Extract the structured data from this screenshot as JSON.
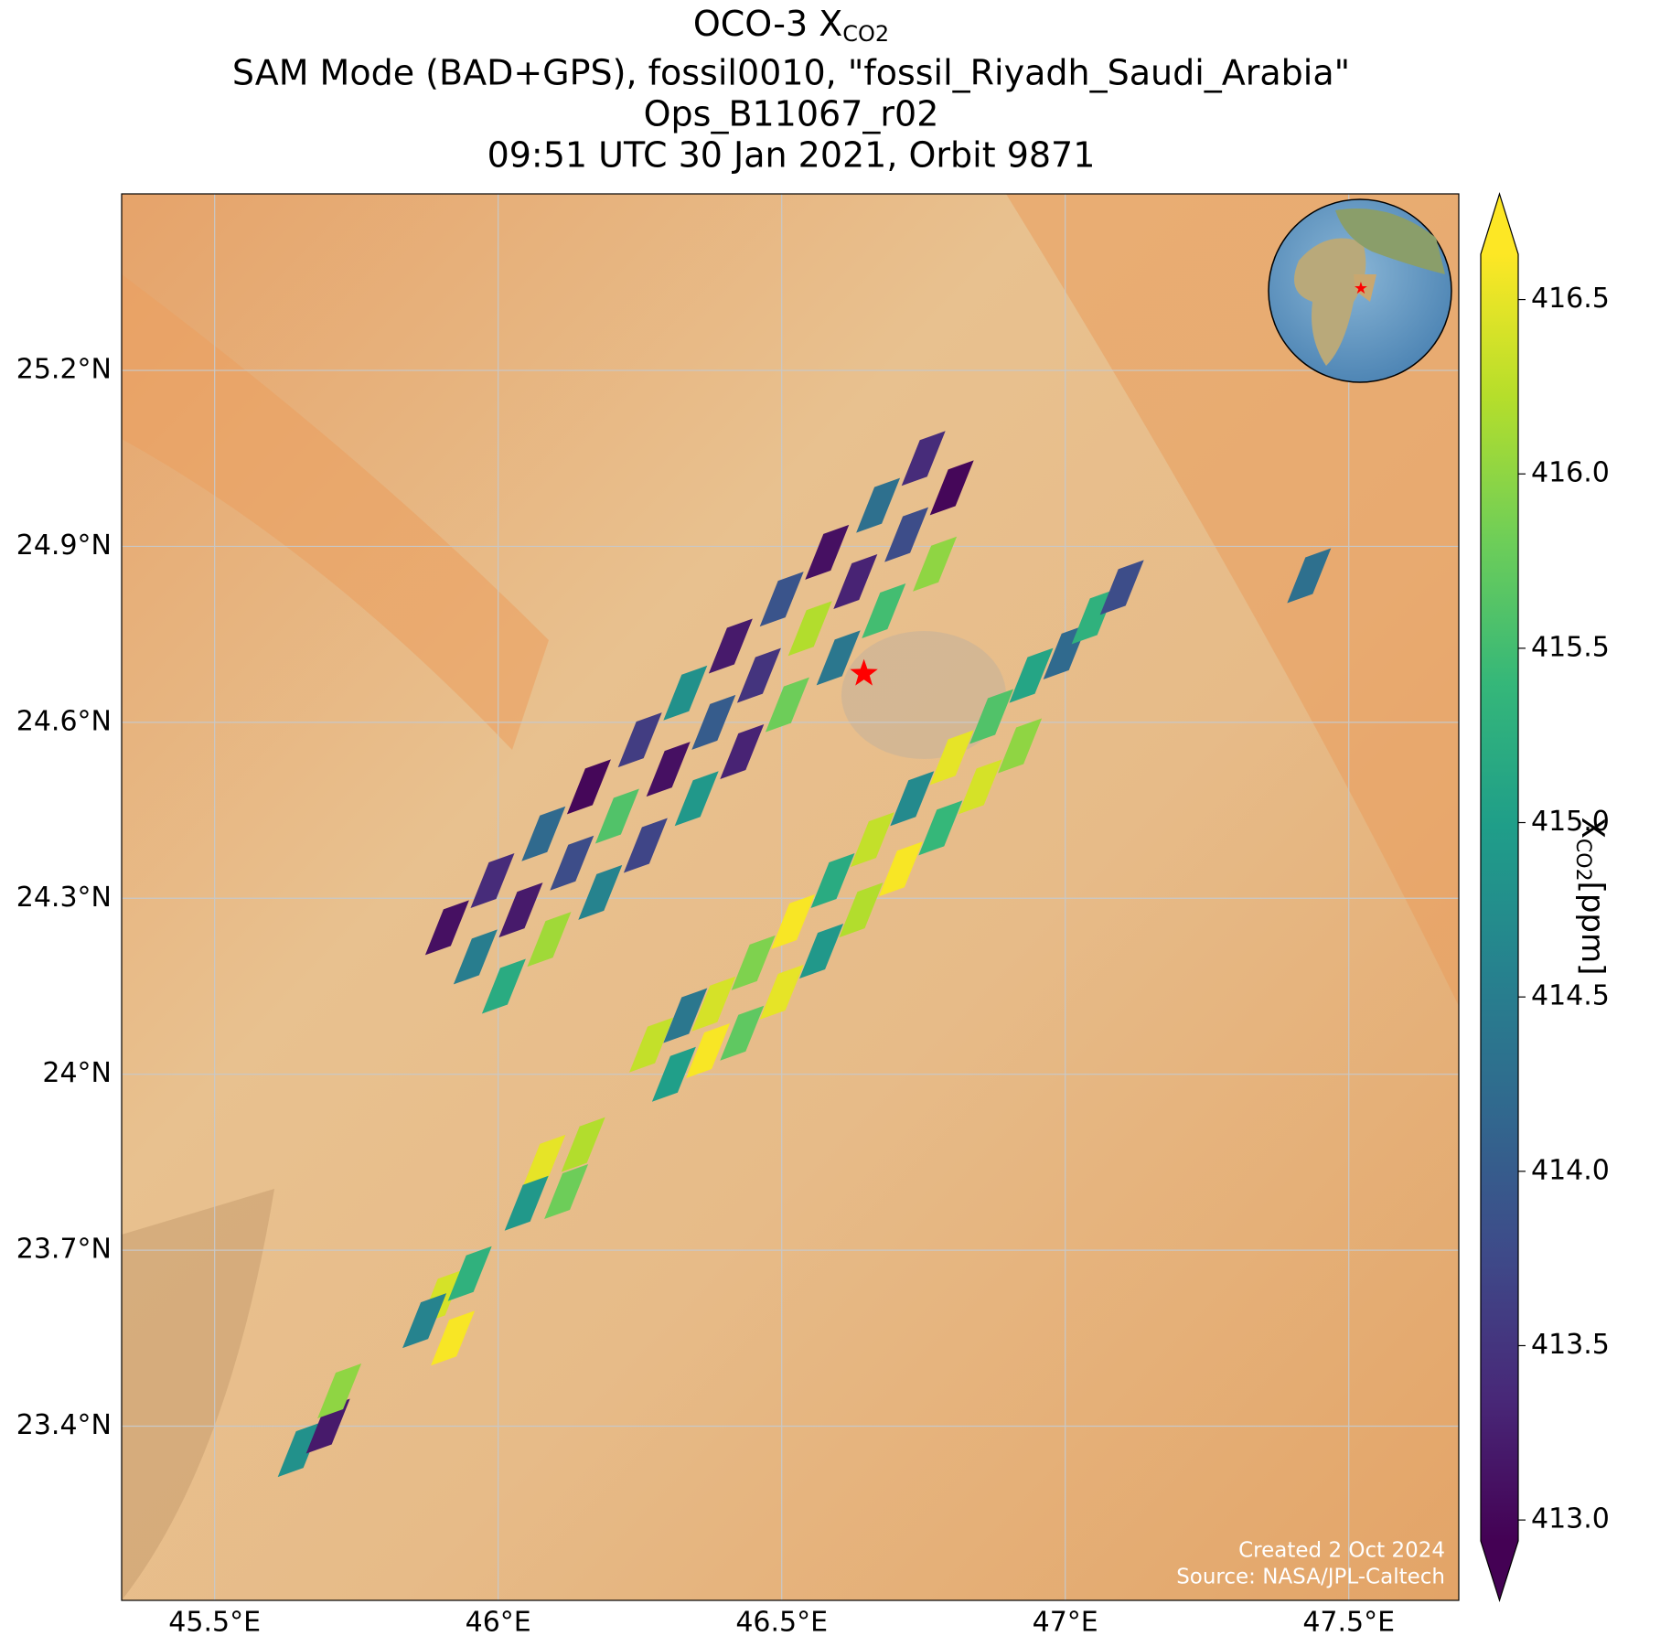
{
  "chart_data": {
    "type": "map",
    "title_prefix": "OCO-3 X",
    "title_subscript": "CO2",
    "subtitle_lines": [
      "SAM Mode (BAD+GPS), fossil0010, \"fossil_Riyadh_Saudi_Arabia\"",
      "Ops_B11067_r02",
      "09:51 UTC 30 Jan 2021, Orbit 9871"
    ],
    "xlim": [
      45.336,
      47.694
    ],
    "ylim": [
      23.103,
      25.501
    ],
    "xticks": [
      {
        "value": 45.5,
        "label": "45.5°E"
      },
      {
        "value": 46,
        "label": "46°E"
      },
      {
        "value": 46.5,
        "label": "46.5°E"
      },
      {
        "value": 47,
        "label": "47°E"
      },
      {
        "value": 47.5,
        "label": "47.5°E"
      }
    ],
    "yticks": [
      {
        "value": 23.4,
        "label": "23.4°N"
      },
      {
        "value": 23.7,
        "label": "23.7°N"
      },
      {
        "value": 24,
        "label": "24°N"
      },
      {
        "value": 24.3,
        "label": "24.3°N"
      },
      {
        "value": 24.6,
        "label": "24.6°N"
      },
      {
        "value": 24.9,
        "label": "24.9°N"
      },
      {
        "value": 25.2,
        "label": "25.2°N"
      }
    ],
    "grid": true,
    "colormap": "viridis",
    "clim": [
      412.94,
      416.63
    ],
    "colorbar_ticks": [
      {
        "value": 413,
        "label": "413.0"
      },
      {
        "value": 413.5,
        "label": "413.5"
      },
      {
        "value": 414,
        "label": "414.0"
      },
      {
        "value": 414.5,
        "label": "414.5"
      },
      {
        "value": 415,
        "label": "415.0"
      },
      {
        "value": 415.5,
        "label": "415.5"
      },
      {
        "value": 416,
        "label": "416.0"
      },
      {
        "value": 416.5,
        "label": "416.5"
      }
    ],
    "colorbar_label": {
      "symbol": "X",
      "subscript": "CO2",
      "unit": "[ppm]"
    },
    "target": {
      "lon": 46.645,
      "lat": 24.683,
      "color": "#ff0000"
    },
    "cells": {
      "lon": [
        45.91,
        45.99,
        46.08,
        46.16,
        46.25,
        46.33,
        46.41,
        46.5,
        46.58,
        46.67,
        46.75,
        45.96,
        46.04,
        46.13,
        46.21,
        46.3,
        46.38,
        46.46,
        46.55,
        46.63,
        46.72,
        46.8,
        46.01,
        46.09,
        46.18,
        46.26,
        46.35,
        46.43,
        46.51,
        46.6,
        46.68,
        46.77,
        46.38,
        46.45,
        46.52,
        46.59,
        46.66,
        46.73,
        46.8,
        46.87,
        46.94,
        46.43,
        46.5,
        46.57,
        46.64,
        46.71,
        46.78,
        46.85,
        46.92,
        47.0,
        47.05,
        47.1,
        46.27,
        46.31,
        46.33,
        46.37,
        46.08,
        46.12,
        46.15,
        46.05,
        45.9,
        45.95,
        45.87,
        45.92,
        45.65,
        45.7,
        45.72,
        47.43
      ],
      "lat": [
        24.25,
        24.33,
        24.41,
        24.49,
        24.57,
        24.65,
        24.73,
        24.81,
        24.89,
        24.97,
        25.05,
        24.2,
        24.28,
        24.36,
        24.44,
        24.52,
        24.6,
        24.68,
        24.76,
        24.84,
        24.92,
        25.0,
        24.15,
        24.23,
        24.31,
        24.39,
        24.47,
        24.55,
        24.63,
        24.71,
        24.79,
        24.87,
        24.12,
        24.19,
        24.26,
        24.33,
        24.4,
        24.47,
        24.54,
        24.61,
        24.68,
        24.07,
        24.14,
        24.21,
        24.28,
        24.35,
        24.42,
        24.49,
        24.56,
        24.72,
        24.78,
        24.83,
        24.05,
        24.0,
        24.1,
        24.04,
        23.85,
        23.8,
        23.88,
        23.78,
        23.62,
        23.66,
        23.58,
        23.55,
        23.36,
        23.4,
        23.46,
        24.85
      ],
      "xco2": [
        413.1,
        413.4,
        414.2,
        413.0,
        413.6,
        414.8,
        413.2,
        413.9,
        413.1,
        414.3,
        413.4,
        414.5,
        413.2,
        413.8,
        415.6,
        413.1,
        414.0,
        413.5,
        416.2,
        413.3,
        413.8,
        413.0,
        415.2,
        416.1,
        414.6,
        413.7,
        414.9,
        413.3,
        415.8,
        414.4,
        415.5,
        416.0,
        416.4,
        415.9,
        416.6,
        415.2,
        416.3,
        414.7,
        416.5,
        415.6,
        415.1,
        415.7,
        416.5,
        414.9,
        416.2,
        416.6,
        415.4,
        416.4,
        416.0,
        414.2,
        415.3,
        413.8,
        416.3,
        415.0,
        414.4,
        416.6,
        416.5,
        415.8,
        416.2,
        414.9,
        416.4,
        415.3,
        414.6,
        416.6,
        414.8,
        413.2,
        416.0,
        414.3
      ]
    },
    "credit_lines": [
      "Created 2 Oct 2024",
      "Source: NASA/JPL-Caltech"
    ]
  }
}
